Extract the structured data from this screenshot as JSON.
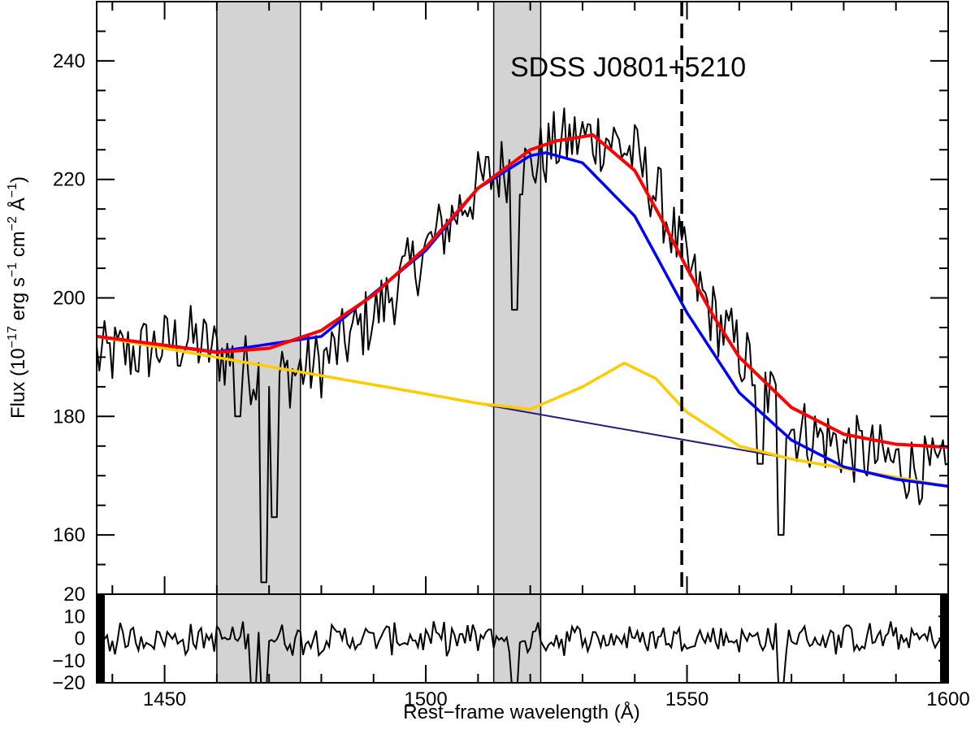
{
  "chart_data": [
    {
      "type": "line",
      "title": "SDSS J0801+5210",
      "xlabel": "Rest−frame wavelength (Å)",
      "ylabel": {
        "prefix": "Flux (10",
        "exp1": "−17",
        "mid1": " erg s",
        "exp2": "−1",
        "mid2": " cm",
        "exp3": "−2",
        "mid3": " Å",
        "exp4": "−1",
        "suffix": ")"
      },
      "xlim": [
        1437,
        1600
      ],
      "ylim": [
        150,
        250
      ],
      "xticks": [
        1450,
        1500,
        1550,
        1600
      ],
      "yticks": [
        160,
        180,
        200,
        220,
        240
      ],
      "masked_regions": [
        [
          1460,
          1476
        ],
        [
          1513,
          1522
        ]
      ],
      "reference_line": {
        "x": 1549,
        "style": "dashed"
      },
      "series": [
        {
          "name": "observed spectrum",
          "color": "#000000",
          "kind": "noisy",
          "anchors": {
            "x": [
              1437,
              1445,
              1455,
              1462,
              1470,
              1480,
              1490,
              1500,
              1510,
              1515,
              1520,
              1525,
              1530,
              1535,
              1540,
              1545,
              1550,
              1555,
              1560,
              1565,
              1570,
              1580,
              1590,
              1600
            ],
            "y": [
              190,
              191,
              193,
              190,
              186,
              189,
              197,
              208,
              219,
              222,
              222,
              226,
              227,
              227,
              224,
              216,
              205,
              197,
              191,
              185,
              178,
              175,
              172,
              170
            ]
          },
          "dips": [
            [
              1469,
              152
            ],
            [
              1471,
              163
            ],
            [
              1464,
              180
            ],
            [
              1517,
              198
            ],
            [
              1568,
              160
            ],
            [
              1564,
              172
            ]
          ]
        },
        {
          "name": "continuum",
          "color": "#2a1a7a",
          "x": [
            1437,
            1600
          ],
          "y": [
            193.5,
            168.2
          ]
        },
        {
          "name": "continuum + narrow component",
          "color": "#ffcc00",
          "x": [
            1437,
            1500,
            1510,
            1520,
            1530,
            1538,
            1544,
            1550,
            1560,
            1570,
            1600
          ],
          "y": [
            193.5,
            183.8,
            182.2,
            181.2,
            185.0,
            189.0,
            186.4,
            180.7,
            175.0,
            172.8,
            168.2
          ]
        },
        {
          "name": "broad component",
          "color": "#0000ff",
          "x": [
            1437,
            1460,
            1480,
            1500,
            1510,
            1520,
            1523,
            1530,
            1540,
            1550,
            1560,
            1570,
            1580,
            1590,
            1600
          ],
          "y": [
            193.5,
            190.9,
            193.5,
            208.0,
            218.5,
            224.0,
            224.5,
            222.8,
            213.8,
            197.5,
            184.0,
            176.0,
            171.5,
            169.4,
            168.2
          ]
        },
        {
          "name": "total model",
          "color": "#ff0000",
          "x": [
            1437,
            1450,
            1460,
            1470,
            1480,
            1490,
            1500,
            1510,
            1520,
            1525,
            1530,
            1532,
            1540,
            1545,
            1550,
            1555,
            1560,
            1570,
            1580,
            1590,
            1600
          ],
          "y": [
            193.5,
            192.0,
            190.8,
            191.5,
            194.5,
            200.5,
            208.5,
            218.5,
            225.0,
            226.5,
            227.2,
            227.5,
            221.5,
            213.5,
            205.0,
            197.0,
            190.0,
            181.5,
            177.0,
            175.3,
            174.8
          ]
        }
      ]
    },
    {
      "type": "line",
      "title": "residuals",
      "xlim": [
        1437,
        1600
      ],
      "ylim": [
        -20,
        20
      ],
      "yticks": [
        -20,
        -10,
        0,
        10,
        20
      ],
      "series": [
        {
          "name": "residuals",
          "color": "#000000",
          "kind": "noise",
          "amplitude": 6,
          "dips": [
            [
              1469,
              -22
            ],
            [
              1467,
              -20
            ],
            [
              1517,
              -22
            ],
            [
              1568,
              -20
            ]
          ]
        }
      ]
    }
  ]
}
